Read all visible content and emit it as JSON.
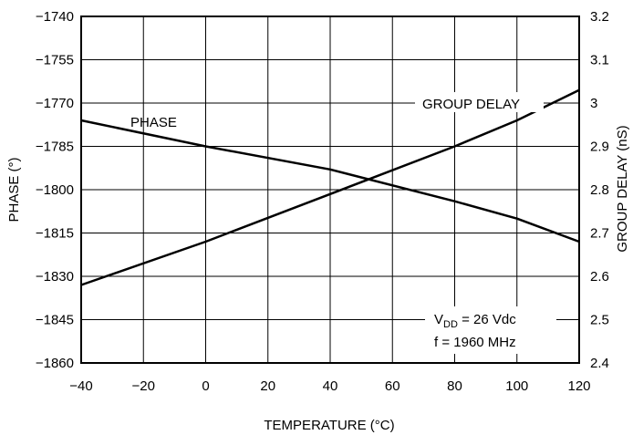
{
  "chart_data": {
    "type": "line",
    "x_axis": {
      "label": "TEMPERATURE (°C)",
      "range": [
        -40,
        120
      ],
      "ticks": [
        -40,
        -20,
        0,
        20,
        40,
        60,
        80,
        100,
        120
      ]
    },
    "y_axis_left": {
      "label": "PHASE (°)",
      "range": [
        -1860,
        -1740
      ],
      "ticks": [
        -1860,
        -1845,
        -1830,
        -1815,
        -1800,
        -1785,
        -1770,
        -1755,
        -1740
      ]
    },
    "y_axis_right": {
      "label": "GROUP DELAY (nS)",
      "range": [
        2.4,
        3.2
      ],
      "ticks": [
        2.4,
        2.5,
        2.6,
        2.7,
        2.8,
        2.9,
        3.0,
        3.1,
        3.2
      ],
      "tick_labels": [
        "2.4",
        "2.5",
        "2.6",
        "2.7",
        "2.8",
        "2.9",
        "3",
        "3.1",
        "3.2"
      ]
    },
    "grid": true,
    "series": [
      {
        "name": "PHASE",
        "axis": "left",
        "x": [
          -40,
          0,
          40,
          80,
          100,
          120
        ],
        "y": [
          -1776,
          -1785,
          -1793,
          -1804,
          -1810,
          -1818
        ]
      },
      {
        "name": "GROUP DELAY",
        "axis": "right",
        "x": [
          -40,
          0,
          40,
          80,
          100,
          120
        ],
        "y": [
          2.58,
          2.68,
          2.79,
          2.9,
          2.96,
          3.03
        ]
      }
    ],
    "annotations": {
      "vdd_prefix": "V",
      "vdd_subscript": "DD",
      "vdd_value": " = 26 Vdc",
      "frequency": "f = 1960 MHz"
    }
  }
}
